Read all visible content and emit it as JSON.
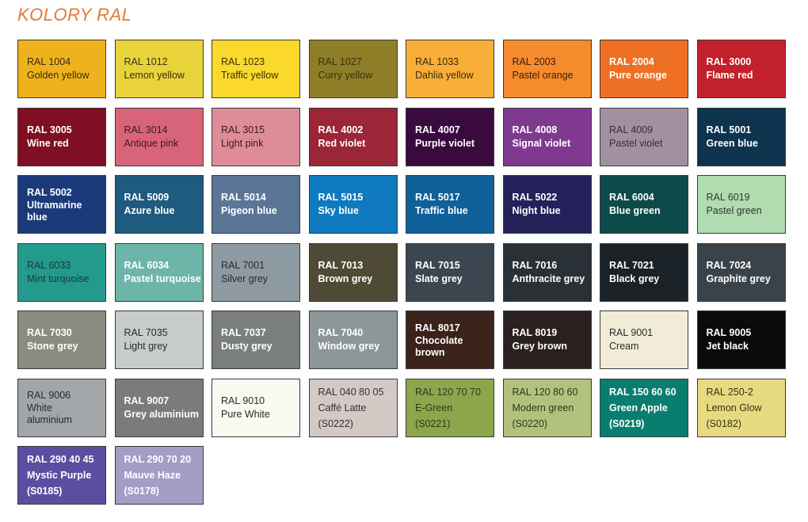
{
  "title": "KOLORY RAL",
  "swatches": [
    {
      "code": "RAL 1004",
      "name": "Golden yellow",
      "color": "#efb21d",
      "text": "#3a2a10"
    },
    {
      "code": "RAL 1012",
      "name": "Lemon yellow",
      "color": "#e8d33a",
      "text": "#3a3010"
    },
    {
      "code": "RAL 1023",
      "name": "Traffic yellow",
      "color": "#fad92b",
      "text": "#3a3010"
    },
    {
      "code": "RAL 1027",
      "name": "Curry yellow",
      "color": "#8f7e28",
      "text": "#3a3010"
    },
    {
      "code": "RAL 1033",
      "name": "Dahlia yellow",
      "color": "#f8ae38",
      "text": "#3a2a10"
    },
    {
      "code": "RAL 2003",
      "name": "Pastel orange",
      "color": "#f58b2c",
      "text": "#3a2010"
    },
    {
      "code": "RAL 2004",
      "name": "Pure orange",
      "color": "#ee7024",
      "text": "#ffffff"
    },
    {
      "code": "RAL 3000",
      "name": "Flame red",
      "color": "#c2202a",
      "text": "#ffffff"
    },
    {
      "code": "RAL 3005",
      "name": "Wine red",
      "color": "#7f0f22",
      "text": "#ffffff"
    },
    {
      "code": "RAL 3014",
      "name": "Antique pink",
      "color": "#d86479",
      "text": "#3a1a20"
    },
    {
      "code": "RAL 3015",
      "name": "Light pink",
      "color": "#df8c99",
      "text": "#3a1a20"
    },
    {
      "code": "RAL 4002",
      "name": "Red violet",
      "color": "#9a2637",
      "text": "#ffffff"
    },
    {
      "code": "RAL 4007",
      "name": "Purple violet",
      "color": "#3a0a3f",
      "text": "#ffffff"
    },
    {
      "code": "RAL 4008",
      "name": "Signal violet",
      "color": "#7f3a8f",
      "text": "#ffffff"
    },
    {
      "code": "RAL 4009",
      "name": "Pastel violet",
      "color": "#a1919f",
      "text": "#3a2a3a"
    },
    {
      "code": "RAL 5001",
      "name": "Green blue",
      "color": "#0e334f",
      "text": "#ffffff"
    },
    {
      "code": "RAL 5002",
      "name": "Ultramarine blue",
      "color": "#1b3a7a",
      "text": "#ffffff"
    },
    {
      "code": "RAL 5009",
      "name": "Azure blue",
      "color": "#1f5a7f",
      "text": "#ffffff"
    },
    {
      "code": "RAL 5014",
      "name": "Pigeon blue",
      "color": "#5b7597",
      "text": "#ffffff"
    },
    {
      "code": "RAL 5015",
      "name": "Sky blue",
      "color": "#0f7ac0",
      "text": "#ffffff"
    },
    {
      "code": "RAL 5017",
      "name": "Traffic blue",
      "color": "#10609a",
      "text": "#ffffff"
    },
    {
      "code": "RAL 5022",
      "name": "Night blue",
      "color": "#23205a",
      "text": "#ffffff"
    },
    {
      "code": "RAL 6004",
      "name": "Blue green",
      "color": "#0d4a4a",
      "text": "#ffffff"
    },
    {
      "code": "RAL 6019",
      "name": "Pastel green",
      "color": "#b1dcb0",
      "text": "#2a3a2a"
    },
    {
      "code": "RAL 6033",
      "name": "Mint turquoise",
      "color": "#239a8c",
      "text": "#1a3a34"
    },
    {
      "code": "RAL 6034",
      "name": "Pastel turquoise",
      "color": "#6cb5a8",
      "text": "#ffffff"
    },
    {
      "code": "RAL 7001",
      "name": "Silver grey",
      "color": "#8d9aa2",
      "text": "#2a2a2a"
    },
    {
      "code": "RAL 7013",
      "name": "Brown grey",
      "color": "#4f4a35",
      "text": "#ffffff"
    },
    {
      "code": "RAL 7015",
      "name": "Slate grey",
      "color": "#3c4650",
      "text": "#ffffff"
    },
    {
      "code": "RAL 7016",
      "name": "Anthracite grey",
      "color": "#293136",
      "text": "#ffffff"
    },
    {
      "code": "RAL 7021",
      "name": "Black grey",
      "color": "#1b2227",
      "text": "#ffffff"
    },
    {
      "code": "RAL 7024",
      "name": "Graphite grey",
      "color": "#3a434a",
      "text": "#ffffff"
    },
    {
      "code": "RAL 7030",
      "name": "Stone grey",
      "color": "#898c80",
      "text": "#ffffff"
    },
    {
      "code": "RAL 7035",
      "name": "Light grey",
      "color": "#c6ccc9",
      "text": "#2a2a2a"
    },
    {
      "code": "RAL 7037",
      "name": "Dusty grey",
      "color": "#7b7e7f",
      "text": "#ffffff"
    },
    {
      "code": "RAL 7040",
      "name": "Window grey",
      "color": "#8d9699",
      "text": "#ffffff"
    },
    {
      "code": "RAL 8017",
      "name": "Chocolate brown",
      "color": "#3b221a",
      "text": "#ffffff"
    },
    {
      "code": "RAL 8019",
      "name": "Grey brown",
      "color": "#2a2020",
      "text": "#ffffff"
    },
    {
      "code": "RAL 9001",
      "name": "Cream",
      "color": "#f0ecd8",
      "text": "#2a2a2a"
    },
    {
      "code": "RAL 9005",
      "name": "Jet black",
      "color": "#0a0a0c",
      "text": "#ffffff"
    },
    {
      "code": "RAL 9006",
      "name": "White aluminium",
      "color": "#a3a6a8",
      "text": "#2a2a2a"
    },
    {
      "code": "RAL 9007",
      "name": "Grey aluminium",
      "color": "#7b7b7b",
      "text": "#ffffff"
    },
    {
      "code": "RAL 9010",
      "name": "Pure White",
      "color": "#fbfaf0",
      "text": "#2a2a2a"
    },
    {
      "code": "RAL 040 80 05",
      "name": "Caffé Latte",
      "ref": "(S0222)",
      "color": "#d3cac5",
      "text": "#3a3030"
    },
    {
      "code": "RAL 120 70 70",
      "name": "E-Green",
      "ref": "(S0221)",
      "color": "#8ca64c",
      "text": "#2a3a1a"
    },
    {
      "code": "RAL 120 80 60",
      "name": "Modern green",
      "ref": "(S0220)",
      "color": "#b2c27e",
      "text": "#2a3a1a"
    },
    {
      "code": "RAL 150 60 60",
      "name": "Green Apple",
      "ref": "(S0219)",
      "color": "#0a7e6e",
      "text": "#ffffff"
    },
    {
      "code": "RAL 250-2",
      "name": "Lemon Glow",
      "ref": "(S0182)",
      "color": "#e6da80",
      "text": "#3a3010"
    },
    {
      "code": "RAL 290 40 45",
      "name": "Mystic Purple",
      "ref": "(S0185)",
      "color": "#5a4ea0",
      "text": "#ffffff"
    },
    {
      "code": "RAL 290 70 20",
      "name": "Mauve Haze",
      "ref": "(S0178)",
      "color": "#a49dc6",
      "text": "#ffffff"
    }
  ]
}
